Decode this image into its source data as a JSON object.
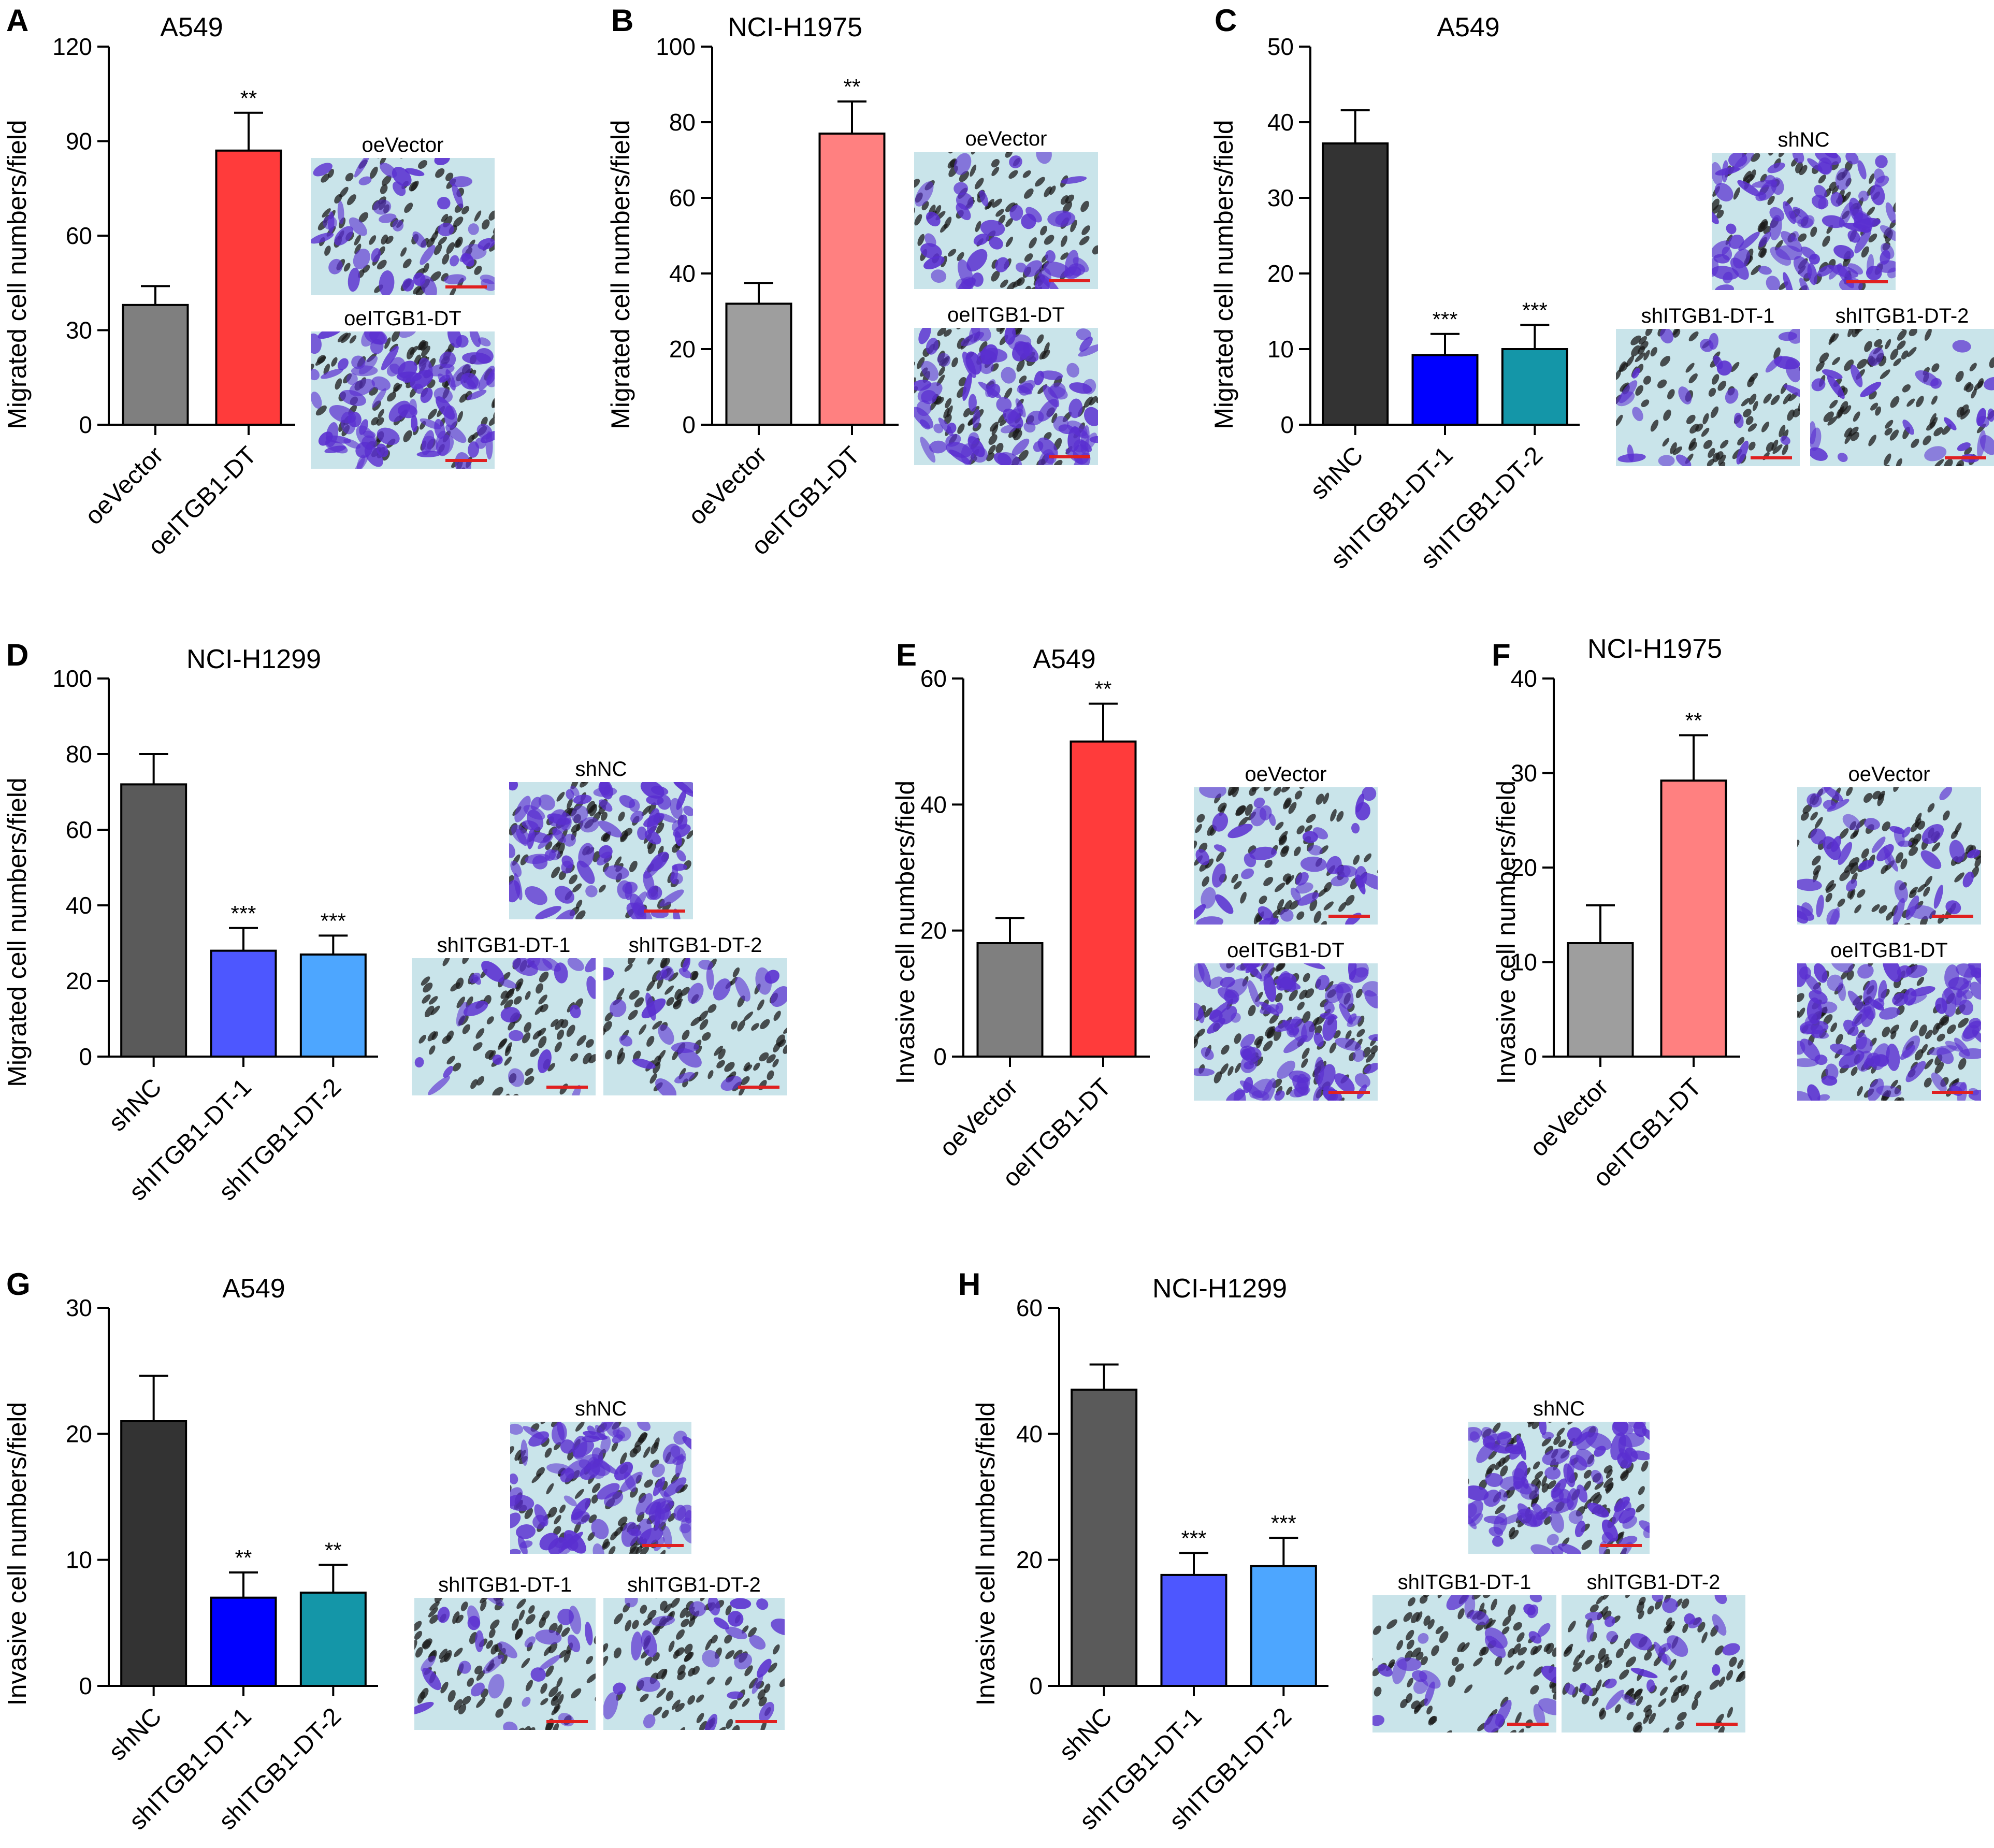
{
  "colors": {
    "oeVector": "#7f7f7f",
    "oeITGB1": "#ff3b3b",
    "oeITGB1_light": "#ff8080",
    "shNC": "#333333",
    "shNC_gray": "#5a5a5a",
    "sh1_blue": "#0000ff",
    "sh2_teal": "#1496a8",
    "sh1_light": "#4d57ff",
    "sh2_light": "#4da6ff",
    "vector_light": "#9e9e9e",
    "stain_bg": "#c9e4ea",
    "stain_purple": "#5a2fd0",
    "scale_bar": "#e02020"
  },
  "chart_data": [
    {
      "type": "bar",
      "panel": "A",
      "title": "A549",
      "ylabel": "Migrated cell numbers/field",
      "categories": [
        "oeVector",
        "oeITGB1-DT"
      ],
      "values": [
        38,
        87
      ],
      "errors": [
        6,
        12
      ],
      "significance": [
        "",
        "**"
      ],
      "ylim": [
        0,
        120
      ],
      "yticks": [
        "0",
        "30",
        "60",
        "90",
        "120"
      ],
      "bar_colors": [
        "#7f7f7f",
        "#ff3b3b"
      ],
      "images": [
        "oeVector",
        "oeITGB1-DT"
      ],
      "image_layout": "stack"
    },
    {
      "type": "bar",
      "panel": "B",
      "title": "NCI-H1975",
      "ylabel": "Migrated cell numbers/field",
      "categories": [
        "oeVector",
        "oeITGB1-DT"
      ],
      "values": [
        32,
        77
      ],
      "errors": [
        5.5,
        8.5
      ],
      "significance": [
        "",
        "**"
      ],
      "ylim": [
        0,
        100
      ],
      "yticks": [
        "0",
        "20",
        "40",
        "60",
        "80",
        "100"
      ],
      "bar_colors": [
        "#9e9e9e",
        "#ff8080"
      ],
      "images": [
        "oeVector",
        "oeITGB1-DT"
      ],
      "image_layout": "stack"
    },
    {
      "type": "bar",
      "panel": "C",
      "title": "A549",
      "ylabel": "Migrated cell numbers/field",
      "categories": [
        "shNC",
        "shITGB1-DT-1",
        "shITGB1-DT-2"
      ],
      "values": [
        37.2,
        9.2,
        10
      ],
      "errors": [
        4.4,
        2.8,
        3.2
      ],
      "significance": [
        "",
        "***",
        "***"
      ],
      "ylim": [
        0,
        50
      ],
      "yticks": [
        "0",
        "10",
        "20",
        "30",
        "40",
        "50"
      ],
      "bar_colors": [
        "#333333",
        "#0000ff",
        "#1496a8"
      ],
      "images": [
        "shNC",
        "shITGB1-DT-1",
        "shITGB1-DT-2"
      ],
      "image_layout": "triad"
    },
    {
      "type": "bar",
      "panel": "D",
      "title": "NCI-H1299",
      "ylabel": "Migrated cell numbers/field",
      "categories": [
        "shNC",
        "shITGB1-DT-1",
        "shITGB1-DT-2"
      ],
      "values": [
        72,
        28,
        27
      ],
      "errors": [
        8,
        6,
        5
      ],
      "significance": [
        "",
        "***",
        "***"
      ],
      "ylim": [
        0,
        100
      ],
      "yticks": [
        "0",
        "20",
        "40",
        "60",
        "80",
        "100"
      ],
      "bar_colors": [
        "#5a5a5a",
        "#4d57ff",
        "#4da6ff"
      ],
      "images": [
        "shNC",
        "shITGB1-DT-1",
        "shITGB1-DT-2"
      ],
      "image_layout": "triad"
    },
    {
      "type": "bar",
      "panel": "E",
      "title": "A549",
      "ylabel": "Invasive cell numbers/field",
      "categories": [
        "oeVector",
        "oeITGB1-DT"
      ],
      "values": [
        18,
        50
      ],
      "errors": [
        4,
        6
      ],
      "significance": [
        "",
        "**"
      ],
      "ylim": [
        0,
        60
      ],
      "yticks": [
        "0",
        "20",
        "40",
        "60"
      ],
      "bar_colors": [
        "#7f7f7f",
        "#ff3b3b"
      ],
      "images": [
        "oeVector",
        "oeITGB1-DT"
      ],
      "image_layout": "stack"
    },
    {
      "type": "bar",
      "panel": "F",
      "title": "NCI-H1975",
      "ylabel": "Invasive cell numbers/field",
      "categories": [
        "oeVector",
        "oeITGB1-DT"
      ],
      "values": [
        12,
        29.2
      ],
      "errors": [
        4,
        4.8
      ],
      "significance": [
        "",
        "**"
      ],
      "ylim": [
        0,
        40
      ],
      "yticks": [
        "0",
        "10",
        "20",
        "30",
        "40"
      ],
      "bar_colors": [
        "#9e9e9e",
        "#ff8080"
      ],
      "images": [
        "oeVector",
        "oeITGB1-DT"
      ],
      "image_layout": "stack"
    },
    {
      "type": "bar",
      "panel": "G",
      "title": "A549",
      "ylabel": "Invasive cell numbers/field",
      "categories": [
        "shNC",
        "shITGB1-DT-1",
        "shITGB1-DT-2"
      ],
      "values": [
        21,
        7,
        7.4
      ],
      "errors": [
        3.6,
        2,
        2.2
      ],
      "significance": [
        "",
        "**",
        "**"
      ],
      "ylim": [
        0,
        30
      ],
      "yticks": [
        "0",
        "10",
        "20",
        "30"
      ],
      "bar_colors": [
        "#333333",
        "#0000ff",
        "#1496a8"
      ],
      "images": [
        "shNC",
        "shITGB1-DT-1",
        "shITGB1-DT-2"
      ],
      "image_layout": "triad"
    },
    {
      "type": "bar",
      "panel": "H",
      "title": "NCI-H1299",
      "ylabel": "Invasive cell numbers/field",
      "categories": [
        "shNC",
        "shITGB1-DT-1",
        "shITGB1-DT-2"
      ],
      "values": [
        47,
        17.6,
        19
      ],
      "errors": [
        4,
        3.5,
        4.5
      ],
      "significance": [
        "",
        "***",
        "***"
      ],
      "ylim": [
        0,
        60
      ],
      "yticks": [
        "0",
        "20",
        "40",
        "60"
      ],
      "bar_colors": [
        "#5a5a5a",
        "#4d57ff",
        "#4da6ff"
      ],
      "images": [
        "shNC",
        "shITGB1-DT-1",
        "shITGB1-DT-2"
      ],
      "image_layout": "triad"
    }
  ]
}
